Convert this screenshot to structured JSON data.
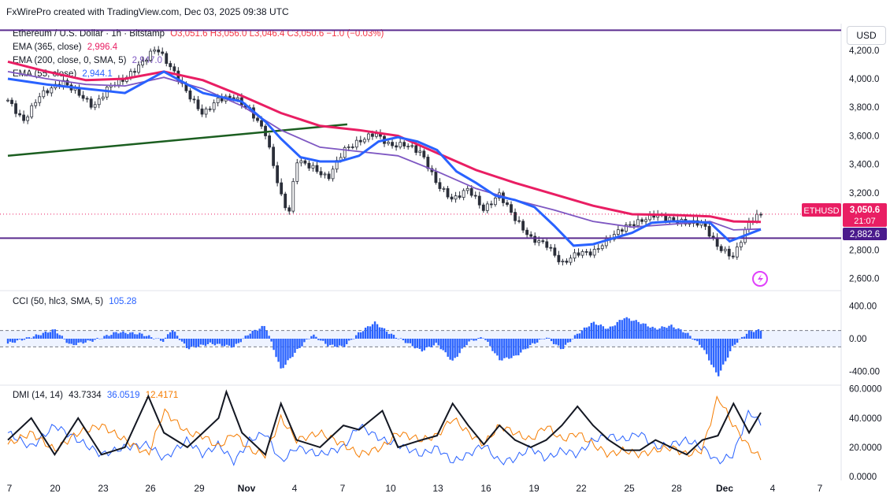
{
  "header": {
    "watermark": "FxWirePro created with TradingView.com, Dec 03, 2025 09:38 UTC"
  },
  "currency": "USD",
  "legend": {
    "symbol": "Ethereum / U.S. Dollar · 1h · Bitstamp",
    "ohlc": "O3,051.6  H3,056.0  L3,046.4  C3,050.6  −1.0 (−0.03%)",
    "ema365_label": "EMA (365, close)",
    "ema365_value": "2,996.4",
    "ema200_label": "EMA (200, close, 0, SMA, 5)",
    "ema200_value": "2,947.0",
    "ema55_label": "EMA (55, close)",
    "ema55_value": "2,944.1",
    "cci_label": "CCI (50, hlc3, SMA, 5)",
    "cci_value": "105.28",
    "dmi_label": "DMI (14, 14)",
    "dmi_adx": "43.7334",
    "dmi_plus": "36.0519",
    "dmi_minus": "12.4171"
  },
  "tags": {
    "symbol": "ETHUSD",
    "price": "3,050.6",
    "countdown": "21:07",
    "level": "2,882.6"
  },
  "colors": {
    "ema365": "#e91e63",
    "ema200": "#7e57c2",
    "ema55": "#2962ff",
    "candle": "#2a2e39",
    "cci": "#2962ff",
    "adx": "#131722",
    "di_plus": "#2962ff",
    "di_minus": "#f57c00",
    "hline": "#5b2c8f",
    "trend": "#1b5e20"
  },
  "chart_data": {
    "type": "line",
    "x_ticks": [
      "7",
      "20",
      "23",
      "26",
      "29",
      "Nov",
      "4",
      "7",
      "10",
      "13",
      "16",
      "19",
      "22",
      "25",
      "28",
      "Dec",
      "4",
      "7"
    ],
    "price_ticks": [
      "4,200.0",
      "4,000.0",
      "3,800.0",
      "3,600.0",
      "3,400.0",
      "3,200.0",
      "2,800.0",
      "2,600.0"
    ],
    "price_tick_values": [
      4200,
      4000,
      3800,
      3600,
      3400,
      3200,
      2800,
      2600
    ],
    "cci_ticks": [
      "400.00",
      "0.00",
      "-400.00"
    ],
    "cci_tick_values": [
      400,
      0,
      -400
    ],
    "dmi_ticks": [
      "60.0000",
      "40.0000",
      "20.0000",
      "0.0000"
    ],
    "dmi_tick_values": [
      60,
      40,
      20,
      0
    ],
    "price_ylim": [
      2520,
      4370
    ],
    "cci_ylim": [
      -560,
      560
    ],
    "dmi_ylim": [
      0,
      62
    ],
    "horizontal_levels": [
      4340,
      2882.6
    ],
    "last_price": 3050.6,
    "price_path": [
      [
        0,
        3850
      ],
      [
        4,
        3700
      ],
      [
        8,
        3880
      ],
      [
        14,
        3980
      ],
      [
        18,
        3900
      ],
      [
        22,
        3800
      ],
      [
        26,
        3950
      ],
      [
        30,
        4000
      ],
      [
        34,
        4100
      ],
      [
        38,
        4220
      ],
      [
        42,
        4070
      ],
      [
        46,
        3900
      ],
      [
        50,
        3750
      ],
      [
        54,
        3860
      ],
      [
        58,
        3870
      ],
      [
        62,
        3780
      ],
      [
        66,
        3620
      ],
      [
        70,
        3180
      ],
      [
        72,
        3050
      ],
      [
        74,
        3430
      ],
      [
        78,
        3380
      ],
      [
        82,
        3300
      ],
      [
        86,
        3500
      ],
      [
        90,
        3560
      ],
      [
        94,
        3620
      ],
      [
        98,
        3530
      ],
      [
        102,
        3540
      ],
      [
        106,
        3480
      ],
      [
        110,
        3260
      ],
      [
        114,
        3150
      ],
      [
        118,
        3230
      ],
      [
        122,
        3080
      ],
      [
        126,
        3190
      ],
      [
        130,
        3020
      ],
      [
        134,
        2880
      ],
      [
        138,
        2840
      ],
      [
        142,
        2700
      ],
      [
        146,
        2780
      ],
      [
        150,
        2780
      ],
      [
        154,
        2880
      ],
      [
        158,
        2960
      ],
      [
        162,
        3000
      ],
      [
        166,
        3050
      ],
      [
        170,
        3010
      ],
      [
        174,
        2990
      ],
      [
        178,
        2990
      ],
      [
        182,
        2820
      ],
      [
        186,
        2750
      ],
      [
        190,
        3000
      ],
      [
        193,
        3050.6
      ]
    ],
    "ema365": [
      [
        0,
        4120
      ],
      [
        10,
        4050
      ],
      [
        20,
        3990
      ],
      [
        30,
        4000
      ],
      [
        40,
        4050
      ],
      [
        50,
        3990
      ],
      [
        60,
        3880
      ],
      [
        70,
        3760
      ],
      [
        80,
        3670
      ],
      [
        90,
        3640
      ],
      [
        100,
        3600
      ],
      [
        110,
        3480
      ],
      [
        120,
        3360
      ],
      [
        130,
        3270
      ],
      [
        140,
        3190
      ],
      [
        150,
        3110
      ],
      [
        160,
        3050
      ],
      [
        170,
        3045
      ],
      [
        180,
        3035
      ],
      [
        186,
        3000
      ],
      [
        193,
        2996.4
      ]
    ],
    "ema200": [
      [
        0,
        4050
      ],
      [
        10,
        4000
      ],
      [
        20,
        3960
      ],
      [
        30,
        3950
      ],
      [
        40,
        4010
      ],
      [
        50,
        3930
      ],
      [
        60,
        3810
      ],
      [
        70,
        3640
      ],
      [
        80,
        3520
      ],
      [
        90,
        3490
      ],
      [
        100,
        3460
      ],
      [
        110,
        3350
      ],
      [
        120,
        3230
      ],
      [
        130,
        3150
      ],
      [
        140,
        3080
      ],
      [
        150,
        3000
      ],
      [
        160,
        2960
      ],
      [
        170,
        2980
      ],
      [
        180,
        3000
      ],
      [
        186,
        2940
      ],
      [
        193,
        2947
      ]
    ],
    "ema55": [
      [
        0,
        4000
      ],
      [
        10,
        3960
      ],
      [
        20,
        3930
      ],
      [
        30,
        3900
      ],
      [
        40,
        4050
      ],
      [
        50,
        3900
      ],
      [
        60,
        3840
      ],
      [
        66,
        3700
      ],
      [
        70,
        3580
      ],
      [
        75,
        3450
      ],
      [
        80,
        3420
      ],
      [
        85,
        3420
      ],
      [
        90,
        3460
      ],
      [
        95,
        3560
      ],
      [
        100,
        3590
      ],
      [
        105,
        3560
      ],
      [
        110,
        3500
      ],
      [
        115,
        3350
      ],
      [
        120,
        3270
      ],
      [
        125,
        3180
      ],
      [
        130,
        3150
      ],
      [
        135,
        3100
      ],
      [
        140,
        2970
      ],
      [
        145,
        2830
      ],
      [
        150,
        2840
      ],
      [
        155,
        2880
      ],
      [
        160,
        2920
      ],
      [
        165,
        2990
      ],
      [
        170,
        3000
      ],
      [
        175,
        3000
      ],
      [
        180,
        2990
      ],
      [
        185,
        2860
      ],
      [
        193,
        2944.1
      ]
    ],
    "trendline": [
      [
        0,
        3460
      ],
      [
        87,
        3680
      ]
    ],
    "cci": [
      [
        0,
        -60
      ],
      [
        6,
        20
      ],
      [
        12,
        110
      ],
      [
        16,
        -80
      ],
      [
        22,
        -20
      ],
      [
        28,
        80
      ],
      [
        34,
        60
      ],
      [
        40,
        -30
      ],
      [
        42,
        120
      ],
      [
        46,
        -120
      ],
      [
        52,
        -60
      ],
      [
        58,
        -100
      ],
      [
        62,
        70
      ],
      [
        66,
        160
      ],
      [
        70,
        -380
      ],
      [
        74,
        -150
      ],
      [
        78,
        50
      ],
      [
        82,
        -80
      ],
      [
        86,
        -100
      ],
      [
        90,
        70
      ],
      [
        94,
        200
      ],
      [
        98,
        60
      ],
      [
        102,
        -40
      ],
      [
        106,
        -150
      ],
      [
        110,
        -60
      ],
      [
        114,
        -280
      ],
      [
        118,
        -40
      ],
      [
        122,
        20
      ],
      [
        126,
        -260
      ],
      [
        130,
        -220
      ],
      [
        134,
        -80
      ],
      [
        138,
        20
      ],
      [
        142,
        -130
      ],
      [
        146,
        60
      ],
      [
        150,
        200
      ],
      [
        154,
        120
      ],
      [
        158,
        260
      ],
      [
        162,
        200
      ],
      [
        166,
        120
      ],
      [
        170,
        160
      ],
      [
        174,
        70
      ],
      [
        178,
        -100
      ],
      [
        182,
        -460
      ],
      [
        186,
        -80
      ],
      [
        190,
        90
      ],
      [
        193,
        105.28
      ]
    ],
    "adx": [
      [
        0,
        25
      ],
      [
        6,
        40
      ],
      [
        12,
        15
      ],
      [
        18,
        40
      ],
      [
        24,
        15
      ],
      [
        30,
        20
      ],
      [
        36,
        55
      ],
      [
        40,
        30
      ],
      [
        46,
        20
      ],
      [
        50,
        30
      ],
      [
        54,
        40
      ],
      [
        56,
        58
      ],
      [
        60,
        30
      ],
      [
        66,
        15
      ],
      [
        70,
        50
      ],
      [
        74,
        25
      ],
      [
        80,
        20
      ],
      [
        86,
        35
      ],
      [
        90,
        32
      ],
      [
        96,
        45
      ],
      [
        100,
        20
      ],
      [
        106,
        25
      ],
      [
        110,
        28
      ],
      [
        114,
        50
      ],
      [
        118,
        35
      ],
      [
        122,
        22
      ],
      [
        126,
        35
      ],
      [
        130,
        25
      ],
      [
        134,
        20
      ],
      [
        138,
        25
      ],
      [
        142,
        35
      ],
      [
        146,
        48
      ],
      [
        150,
        35
      ],
      [
        154,
        25
      ],
      [
        158,
        18
      ],
      [
        162,
        18
      ],
      [
        166,
        25
      ],
      [
        170,
        20
      ],
      [
        174,
        15
      ],
      [
        178,
        25
      ],
      [
        182,
        28
      ],
      [
        186,
        50
      ],
      [
        190,
        30
      ],
      [
        193,
        43.7334
      ]
    ],
    "di_plus": [
      [
        0,
        30
      ],
      [
        6,
        20
      ],
      [
        12,
        35
      ],
      [
        18,
        25
      ],
      [
        24,
        15
      ],
      [
        30,
        20
      ],
      [
        36,
        22
      ],
      [
        40,
        12
      ],
      [
        46,
        25
      ],
      [
        50,
        15
      ],
      [
        54,
        22
      ],
      [
        58,
        10
      ],
      [
        62,
        25
      ],
      [
        66,
        30
      ],
      [
        70,
        10
      ],
      [
        74,
        20
      ],
      [
        80,
        15
      ],
      [
        86,
        20
      ],
      [
        90,
        35
      ],
      [
        96,
        25
      ],
      [
        100,
        22
      ],
      [
        106,
        15
      ],
      [
        110,
        20
      ],
      [
        114,
        10
      ],
      [
        118,
        15
      ],
      [
        122,
        22
      ],
      [
        126,
        10
      ],
      [
        130,
        12
      ],
      [
        134,
        20
      ],
      [
        138,
        12
      ],
      [
        142,
        18
      ],
      [
        146,
        15
      ],
      [
        150,
        25
      ],
      [
        154,
        28
      ],
      [
        158,
        25
      ],
      [
        162,
        30
      ],
      [
        166,
        20
      ],
      [
        170,
        22
      ],
      [
        174,
        25
      ],
      [
        178,
        20
      ],
      [
        182,
        10
      ],
      [
        186,
        15
      ],
      [
        190,
        45
      ],
      [
        193,
        36.0519
      ]
    ],
    "di_minus": [
      [
        0,
        22
      ],
      [
        6,
        30
      ],
      [
        12,
        18
      ],
      [
        18,
        30
      ],
      [
        24,
        35
      ],
      [
        30,
        25
      ],
      [
        36,
        15
      ],
      [
        40,
        45
      ],
      [
        46,
        30
      ],
      [
        50,
        28
      ],
      [
        54,
        20
      ],
      [
        58,
        30
      ],
      [
        62,
        18
      ],
      [
        66,
        15
      ],
      [
        70,
        40
      ],
      [
        74,
        25
      ],
      [
        80,
        30
      ],
      [
        86,
        22
      ],
      [
        90,
        15
      ],
      [
        96,
        20
      ],
      [
        100,
        30
      ],
      [
        106,
        25
      ],
      [
        110,
        28
      ],
      [
        114,
        40
      ],
      [
        118,
        30
      ],
      [
        122,
        22
      ],
      [
        126,
        35
      ],
      [
        130,
        30
      ],
      [
        134,
        25
      ],
      [
        138,
        35
      ],
      [
        142,
        25
      ],
      [
        146,
        30
      ],
      [
        150,
        22
      ],
      [
        154,
        15
      ],
      [
        158,
        18
      ],
      [
        162,
        15
      ],
      [
        166,
        18
      ],
      [
        170,
        20
      ],
      [
        174,
        15
      ],
      [
        178,
        18
      ],
      [
        182,
        55
      ],
      [
        186,
        35
      ],
      [
        190,
        20
      ],
      [
        193,
        12.4171
      ]
    ]
  }
}
